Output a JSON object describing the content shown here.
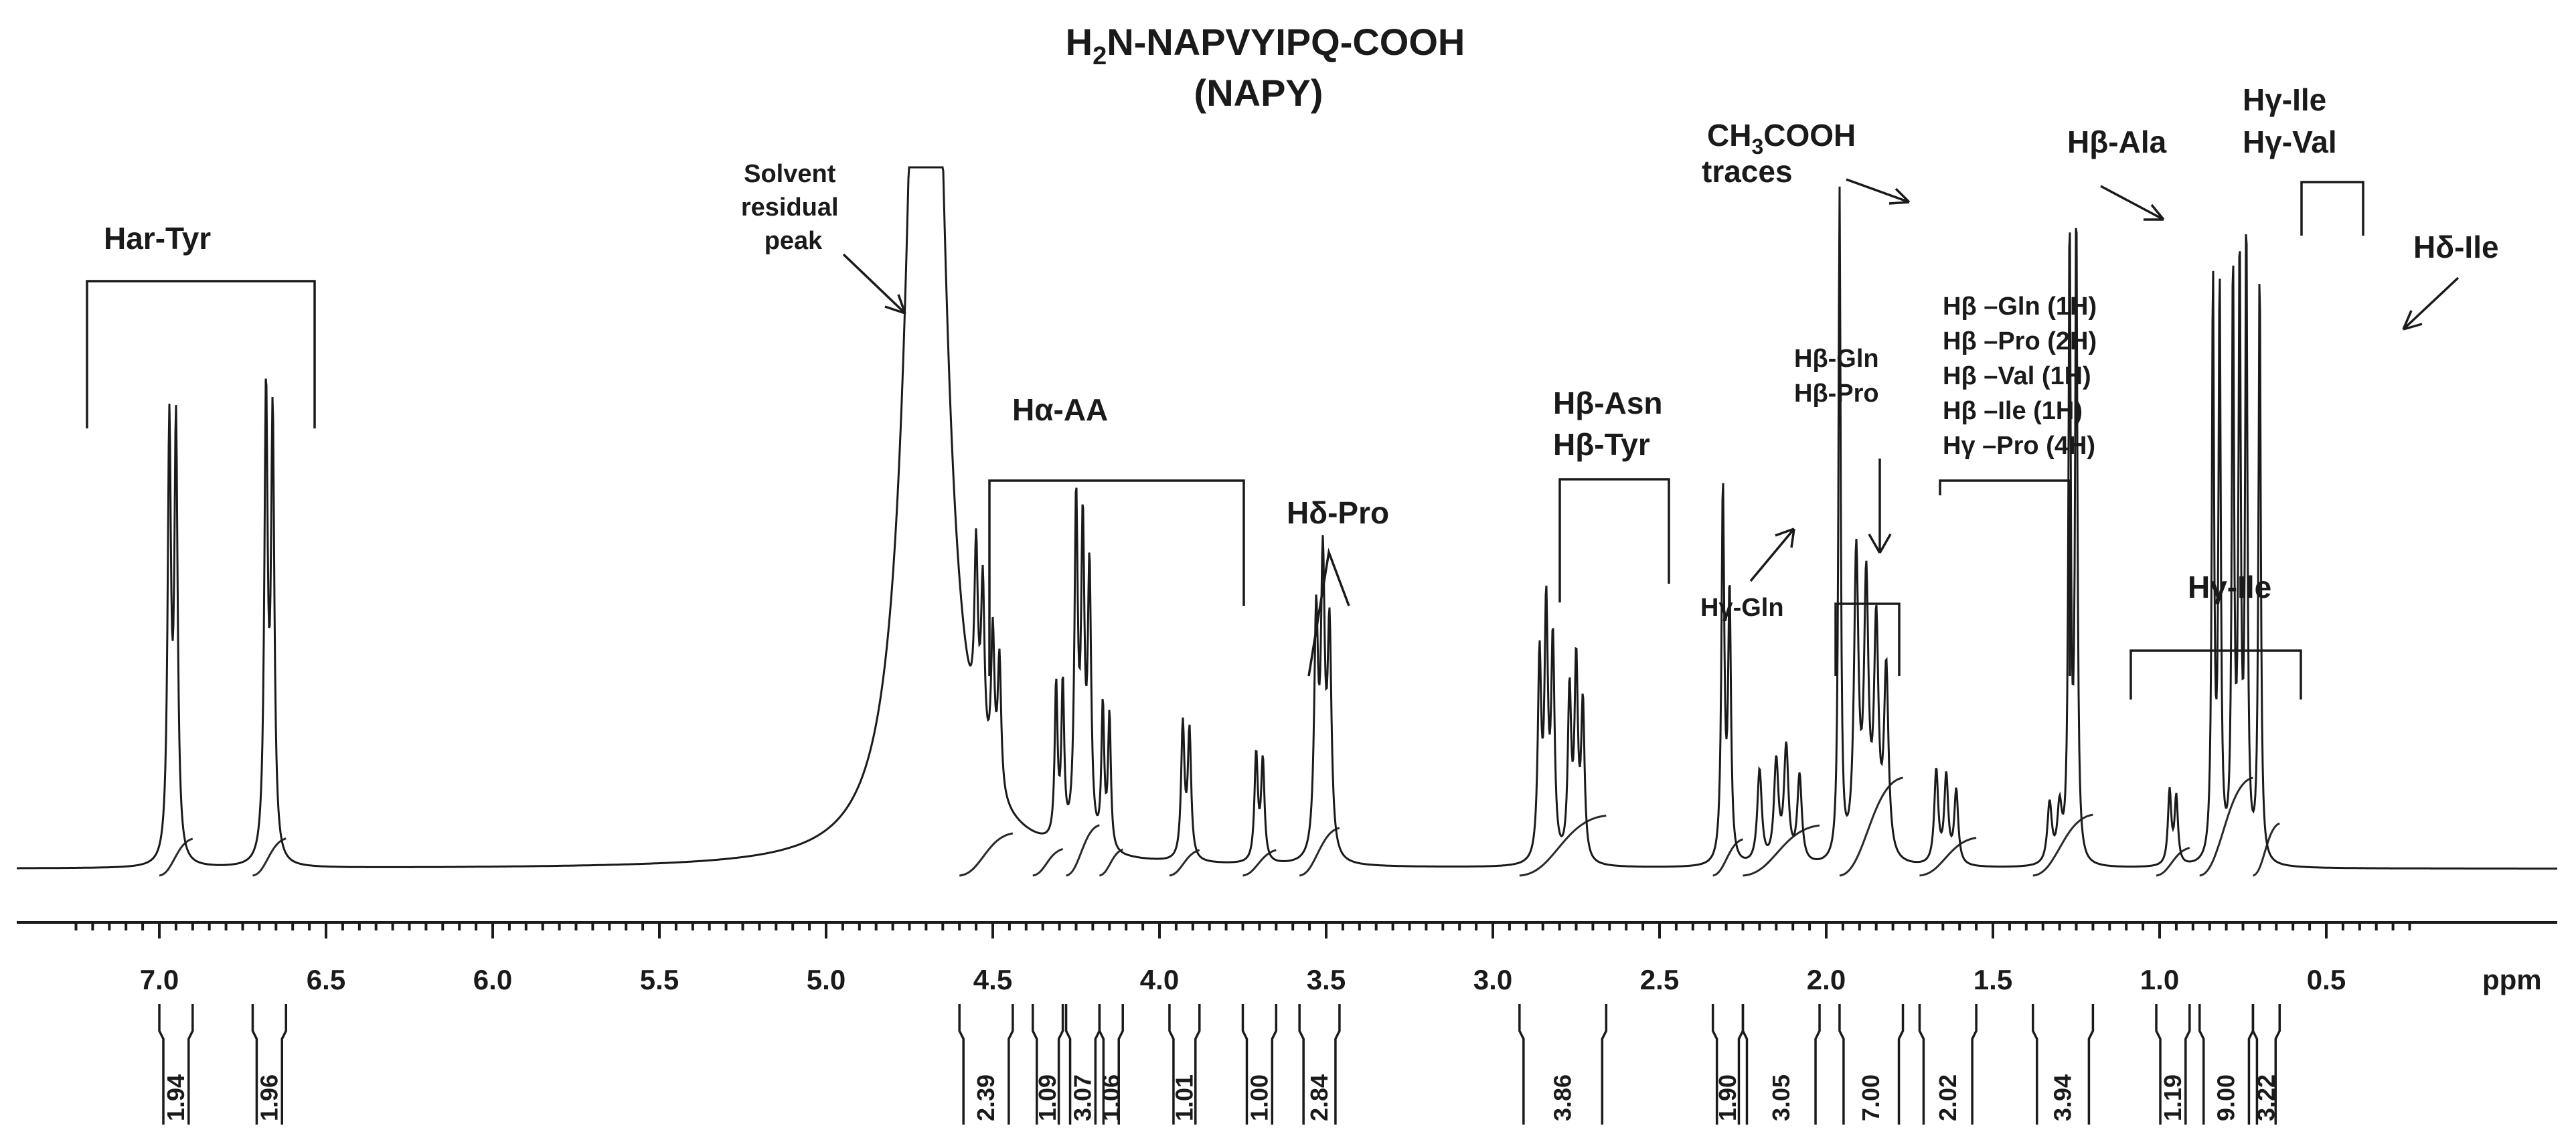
{
  "chart_data": {
    "type": "line",
    "title": "H₂N-NAPVYIPQ-COOH",
    "title_sub": "2",
    "subtitle": "(NAPY)",
    "xlabel": "ppm",
    "xlim": [
      7.3,
      0.25
    ],
    "x_reversed": true,
    "ticks": [
      "7.0",
      "6.5",
      "6.0",
      "5.5",
      "5.0",
      "4.5",
      "4.0",
      "3.5",
      "3.0",
      "2.5",
      "2.0",
      "1.5",
      "1.0",
      "0.5"
    ],
    "tick_values": [
      7.0,
      6.5,
      6.0,
      5.5,
      5.0,
      4.5,
      4.0,
      3.5,
      3.0,
      2.5,
      2.0,
      1.5,
      1.0,
      0.5
    ],
    "peaks": [
      {
        "ppm": 6.97,
        "h": 0.64,
        "w": 0.006
      },
      {
        "ppm": 6.95,
        "h": 0.64,
        "w": 0.006
      },
      {
        "ppm": 6.68,
        "h": 0.69,
        "w": 0.006
      },
      {
        "ppm": 6.66,
        "h": 0.65,
        "w": 0.006
      },
      {
        "ppm": 4.71,
        "h": 1.12,
        "w": 0.05
      },
      {
        "ppm": 4.69,
        "h": 1.0,
        "w": 0.05
      },
      {
        "ppm": 4.55,
        "h": 0.27,
        "w": 0.006
      },
      {
        "ppm": 4.53,
        "h": 0.25,
        "w": 0.006
      },
      {
        "ppm": 4.5,
        "h": 0.22,
        "w": 0.006
      },
      {
        "ppm": 4.48,
        "h": 0.2,
        "w": 0.006
      },
      {
        "ppm": 4.31,
        "h": 0.23,
        "w": 0.005
      },
      {
        "ppm": 4.29,
        "h": 0.23,
        "w": 0.005
      },
      {
        "ppm": 4.25,
        "h": 0.5,
        "w": 0.006
      },
      {
        "ppm": 4.23,
        "h": 0.45,
        "w": 0.006
      },
      {
        "ppm": 4.21,
        "h": 0.4,
        "w": 0.006
      },
      {
        "ppm": 4.17,
        "h": 0.21,
        "w": 0.005
      },
      {
        "ppm": 4.15,
        "h": 0.2,
        "w": 0.005
      },
      {
        "ppm": 3.93,
        "h": 0.2,
        "w": 0.006
      },
      {
        "ppm": 3.91,
        "h": 0.19,
        "w": 0.006
      },
      {
        "ppm": 3.71,
        "h": 0.16,
        "w": 0.006
      },
      {
        "ppm": 3.69,
        "h": 0.15,
        "w": 0.006
      },
      {
        "ppm": 3.53,
        "h": 0.35,
        "w": 0.007
      },
      {
        "ppm": 3.51,
        "h": 0.42,
        "w": 0.007
      },
      {
        "ppm": 3.49,
        "h": 0.33,
        "w": 0.007
      },
      {
        "ppm": 2.86,
        "h": 0.3,
        "w": 0.006
      },
      {
        "ppm": 2.84,
        "h": 0.37,
        "w": 0.006
      },
      {
        "ppm": 2.82,
        "h": 0.32,
        "w": 0.006
      },
      {
        "ppm": 2.77,
        "h": 0.25,
        "w": 0.006
      },
      {
        "ppm": 2.75,
        "h": 0.29,
        "w": 0.006
      },
      {
        "ppm": 2.73,
        "h": 0.23,
        "w": 0.006
      },
      {
        "ppm": 2.31,
        "h": 0.56,
        "w": 0.005
      },
      {
        "ppm": 2.29,
        "h": 0.4,
        "w": 0.005
      },
      {
        "ppm": 2.2,
        "h": 0.14,
        "w": 0.008
      },
      {
        "ppm": 2.15,
        "h": 0.15,
        "w": 0.008
      },
      {
        "ppm": 2.12,
        "h": 0.17,
        "w": 0.008
      },
      {
        "ppm": 2.08,
        "h": 0.13,
        "w": 0.008
      },
      {
        "ppm": 1.96,
        "h": 1.0,
        "w": 0.004
      },
      {
        "ppm": 1.91,
        "h": 0.45,
        "w": 0.008
      },
      {
        "ppm": 1.88,
        "h": 0.4,
        "w": 0.008
      },
      {
        "ppm": 1.85,
        "h": 0.34,
        "w": 0.008
      },
      {
        "ppm": 1.82,
        "h": 0.28,
        "w": 0.008
      },
      {
        "ppm": 1.67,
        "h": 0.14,
        "w": 0.007
      },
      {
        "ppm": 1.64,
        "h": 0.13,
        "w": 0.007
      },
      {
        "ppm": 1.61,
        "h": 0.11,
        "w": 0.007
      },
      {
        "ppm": 1.33,
        "h": 0.09,
        "w": 0.008
      },
      {
        "ppm": 1.3,
        "h": 0.08,
        "w": 0.008
      },
      {
        "ppm": 1.27,
        "h": 0.95,
        "w": 0.004
      },
      {
        "ppm": 1.25,
        "h": 0.97,
        "w": 0.004
      },
      {
        "ppm": 0.97,
        "h": 0.11,
        "w": 0.006
      },
      {
        "ppm": 0.95,
        "h": 0.1,
        "w": 0.006
      },
      {
        "ppm": 0.84,
        "h": 0.87,
        "w": 0.004
      },
      {
        "ppm": 0.82,
        "h": 0.86,
        "w": 0.004
      },
      {
        "ppm": 0.78,
        "h": 0.88,
        "w": 0.004
      },
      {
        "ppm": 0.76,
        "h": 0.89,
        "w": 0.004
      },
      {
        "ppm": 0.74,
        "h": 0.94,
        "w": 0.004
      },
      {
        "ppm": 0.7,
        "h": 0.89,
        "w": 0.004
      }
    ],
    "integrals": [
      {
        "value": "1.94",
        "from": 7.0,
        "to": 6.9
      },
      {
        "value": "1.96",
        "from": 6.72,
        "to": 6.62
      },
      {
        "value": "2.39",
        "from": 4.6,
        "to": 4.44
      },
      {
        "value": "1.09",
        "from": 4.38,
        "to": 4.29
      },
      {
        "value": "3.07",
        "from": 4.28,
        "to": 4.18
      },
      {
        "value": "1.06",
        "from": 4.18,
        "to": 4.11
      },
      {
        "value": "1.01",
        "from": 3.97,
        "to": 3.88
      },
      {
        "value": "1.00",
        "from": 3.75,
        "to": 3.65
      },
      {
        "value": "2.84",
        "from": 3.58,
        "to": 3.46
      },
      {
        "value": "3.86",
        "from": 2.92,
        "to": 2.66
      },
      {
        "value": "1.90",
        "from": 2.34,
        "to": 2.25
      },
      {
        "value": "3.05",
        "from": 2.25,
        "to": 2.02
      },
      {
        "value": "7.00",
        "from": 1.96,
        "to": 1.77
      },
      {
        "value": "2.02",
        "from": 1.72,
        "to": 1.55
      },
      {
        "value": "3.94",
        "from": 1.38,
        "to": 1.2
      },
      {
        "value": "1.19",
        "from": 1.01,
        "to": 0.91
      },
      {
        "value": "9.00",
        "from": 0.88,
        "to": 0.72
      },
      {
        "value": "3.22",
        "from": 0.72,
        "to": 0.64
      }
    ],
    "annotations": {
      "har_tyr": "Har-Tyr",
      "solvent": [
        "Solvent",
        "residual",
        "peak"
      ],
      "ha_aa": "Hα-AA",
      "hd_pro": "Hδ-Pro",
      "hb_asn": "Hβ-Asn",
      "hb_tyr": "Hβ-Tyr",
      "hg_gln": "Hγ-Gln",
      "hb_gln": "Hβ-Gln",
      "hb_pro": "Hβ-Pro",
      "ch3cooh": "CH",
      "ch3cooh_sub": "3",
      "ch3cooh_tail": "COOH",
      "traces": "traces",
      "multi": [
        "Hβ –Gln  (1H)",
        "Hβ –Pro  (2H)",
        "Hβ –Val  (1H)",
        "Hβ –Ile  (1H)",
        "Hγ –Pro  (4H)"
      ],
      "hb_ala": "Hβ-Ala",
      "hg_ile_top": "Hγ-Ile",
      "hg_val": "Hγ-Val",
      "hd_ile": "Hδ-Ile",
      "hg_ile_mid": "Hγ-Ile"
    }
  }
}
